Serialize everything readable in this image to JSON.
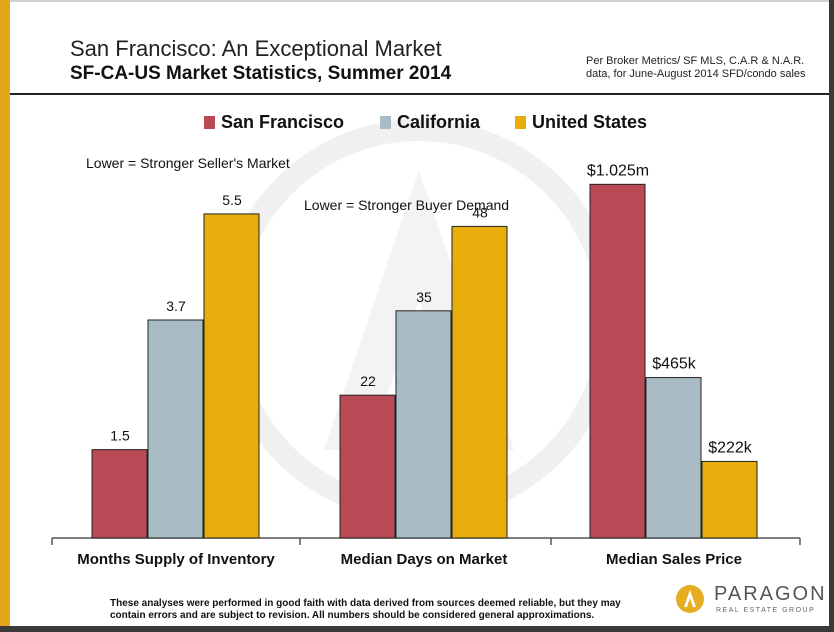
{
  "header": {
    "title": "San Francisco: An Exceptional Market",
    "subtitle": "SF-CA-US Market Statistics, Summer 2014",
    "source_line1": "Per Broker Metrics/ SF MLS, C.A.R & N.A.R.",
    "source_line2": "data, for June-August 2014 SFD/condo sales"
  },
  "notes": {
    "seller": "Lower = Stronger Seller's Market",
    "buyer": "Lower = Stronger Buyer Demand"
  },
  "footer": {
    "disclaimer_line1": "These analyses were performed in good faith with data derived from sources deemed reliable, but they may",
    "disclaimer_line2": "contain errors and are subject to revision. All numbers should be considered general approximations."
  },
  "logo": {
    "name": "PARAGON",
    "tagline": "REAL ESTATE GROUP"
  },
  "colors": {
    "accent": "#e3a819",
    "san_francisco": "#b94a55",
    "california": "#a9bcc5",
    "united_states": "#e7ad0c"
  },
  "chart_data": {
    "type": "bar",
    "title": "",
    "grid": false,
    "legend_position": "top",
    "series": [
      {
        "name": "San Francisco",
        "color": "#b94a55"
      },
      {
        "name": "California",
        "color": "#a9bcc5"
      },
      {
        "name": "United States",
        "color": "#e7ad0c"
      }
    ],
    "groups": [
      {
        "category": "Months Supply of Inventory",
        "values": [
          1.5,
          3.7,
          5.5
        ],
        "labels": [
          "1.5",
          "3.7",
          "5.5"
        ],
        "ymax": 6.5
      },
      {
        "category": "Median Days on Market",
        "values": [
          22,
          35,
          48
        ],
        "labels": [
          "22",
          "35",
          "48"
        ],
        "ymax": 59
      },
      {
        "category": "Median Sales Price",
        "values": [
          1025000,
          465000,
          222000
        ],
        "labels": [
          "$1.025m",
          "$465k",
          "$222k"
        ],
        "ymax": 1110000
      }
    ]
  }
}
